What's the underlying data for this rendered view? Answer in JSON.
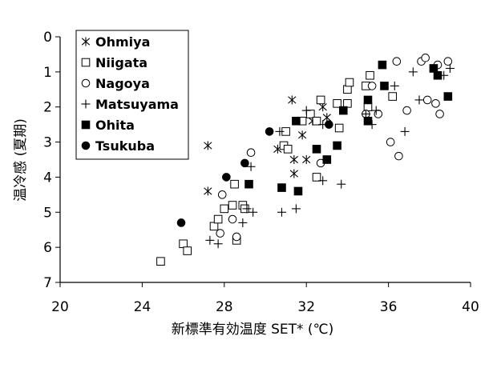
{
  "chart_data": {
    "type": "scatter",
    "xlabel": "新標準有効温度 SET* (℃)",
    "ylabel": "温冷感 (夏期)",
    "xlim": [
      20,
      40
    ],
    "ylim": [
      0,
      7
    ],
    "y_inverted": true,
    "xticks": [
      "20",
      "24",
      "28",
      "32",
      "36",
      "40"
    ],
    "yticks": [
      "0",
      "1",
      "2",
      "3",
      "4",
      "5",
      "6",
      "7"
    ],
    "grid": false,
    "legend_position": "top-left",
    "series": [
      {
        "name": "Ohmiya",
        "marker": "asterisk",
        "points": [
          [
            27.2,
            3.1
          ],
          [
            27.2,
            4.4
          ],
          [
            31.3,
            1.8
          ],
          [
            30.6,
            3.2
          ],
          [
            31.8,
            2.8
          ],
          [
            31.4,
            3.5
          ],
          [
            32.0,
            3.5
          ],
          [
            32.3,
            2.4
          ],
          [
            32.8,
            2.0
          ],
          [
            33.0,
            2.3
          ],
          [
            31.4,
            3.9
          ]
        ]
      },
      {
        "name": "Niigata",
        "marker": "open-square",
        "points": [
          [
            24.9,
            6.4
          ],
          [
            26.0,
            5.9
          ],
          [
            26.2,
            6.1
          ],
          [
            27.5,
            5.4
          ],
          [
            27.7,
            5.2
          ],
          [
            28.0,
            4.9
          ],
          [
            28.5,
            4.2
          ],
          [
            28.4,
            4.8
          ],
          [
            28.9,
            4.8
          ],
          [
            29.0,
            4.9
          ],
          [
            28.6,
            5.8
          ],
          [
            30.9,
            3.1
          ],
          [
            31.0,
            2.7
          ],
          [
            31.1,
            3.2
          ],
          [
            31.8,
            2.4
          ],
          [
            32.2,
            2.2
          ],
          [
            32.5,
            2.4
          ],
          [
            32.5,
            4.0
          ],
          [
            32.7,
            1.8
          ],
          [
            33.5,
            1.9
          ],
          [
            33.6,
            2.6
          ],
          [
            34.0,
            1.9
          ],
          [
            34.0,
            1.5
          ],
          [
            34.1,
            1.3
          ],
          [
            34.9,
            1.4
          ],
          [
            35.0,
            2.0
          ],
          [
            35.1,
            1.1
          ],
          [
            36.2,
            1.7
          ]
        ]
      },
      {
        "name": "Nagoya",
        "marker": "open-circle",
        "points": [
          [
            27.8,
            5.6
          ],
          [
            27.9,
            4.5
          ],
          [
            28.4,
            5.2
          ],
          [
            28.6,
            5.7
          ],
          [
            29.3,
            3.3
          ],
          [
            32.7,
            3.6
          ],
          [
            34.9,
            2.2
          ],
          [
            35.2,
            1.4
          ],
          [
            35.5,
            2.2
          ],
          [
            36.1,
            3.0
          ],
          [
            36.4,
            0.7
          ],
          [
            36.5,
            3.4
          ],
          [
            36.9,
            2.1
          ],
          [
            37.6,
            0.7
          ],
          [
            37.8,
            0.6
          ],
          [
            37.9,
            1.8
          ],
          [
            38.3,
            1.9
          ],
          [
            38.4,
            0.8
          ],
          [
            38.5,
            2.2
          ],
          [
            38.9,
            0.7
          ]
        ]
      },
      {
        "name": "Matsuyama",
        "marker": "plus",
        "points": [
          [
            27.3,
            5.8
          ],
          [
            27.7,
            5.9
          ],
          [
            28.9,
            5.3
          ],
          [
            29.1,
            4.9
          ],
          [
            29.3,
            3.7
          ],
          [
            29.4,
            5.0
          ],
          [
            30.7,
            2.7
          ],
          [
            30.8,
            5.0
          ],
          [
            31.5,
            4.9
          ],
          [
            32.0,
            2.1
          ],
          [
            32.8,
            2.5
          ],
          [
            32.8,
            4.1
          ],
          [
            33.7,
            4.2
          ],
          [
            34.9,
            2.2
          ],
          [
            35.2,
            2.5
          ],
          [
            35.4,
            2.1
          ],
          [
            36.3,
            1.4
          ],
          [
            36.8,
            2.7
          ],
          [
            37.2,
            1.0
          ],
          [
            37.5,
            1.8
          ],
          [
            38.7,
            1.1
          ],
          [
            39.0,
            0.9
          ]
        ]
      },
      {
        "name": "Ohita",
        "marker": "filled-square",
        "points": [
          [
            29.2,
            4.2
          ],
          [
            30.8,
            4.3
          ],
          [
            31.5,
            2.4
          ],
          [
            31.6,
            4.4
          ],
          [
            32.5,
            3.2
          ],
          [
            33.0,
            3.5
          ],
          [
            33.5,
            3.1
          ],
          [
            33.8,
            2.1
          ],
          [
            35.0,
            1.8
          ],
          [
            35.0,
            2.4
          ],
          [
            35.7,
            0.8
          ],
          [
            35.8,
            1.4
          ],
          [
            38.2,
            0.9
          ],
          [
            38.4,
            1.1
          ],
          [
            38.9,
            1.7
          ]
        ]
      },
      {
        "name": "Tsukuba",
        "marker": "filled-circle",
        "points": [
          [
            25.9,
            5.3
          ],
          [
            28.1,
            4.0
          ],
          [
            29.0,
            3.6
          ],
          [
            30.2,
            2.7
          ],
          [
            33.1,
            2.5
          ]
        ]
      }
    ]
  }
}
